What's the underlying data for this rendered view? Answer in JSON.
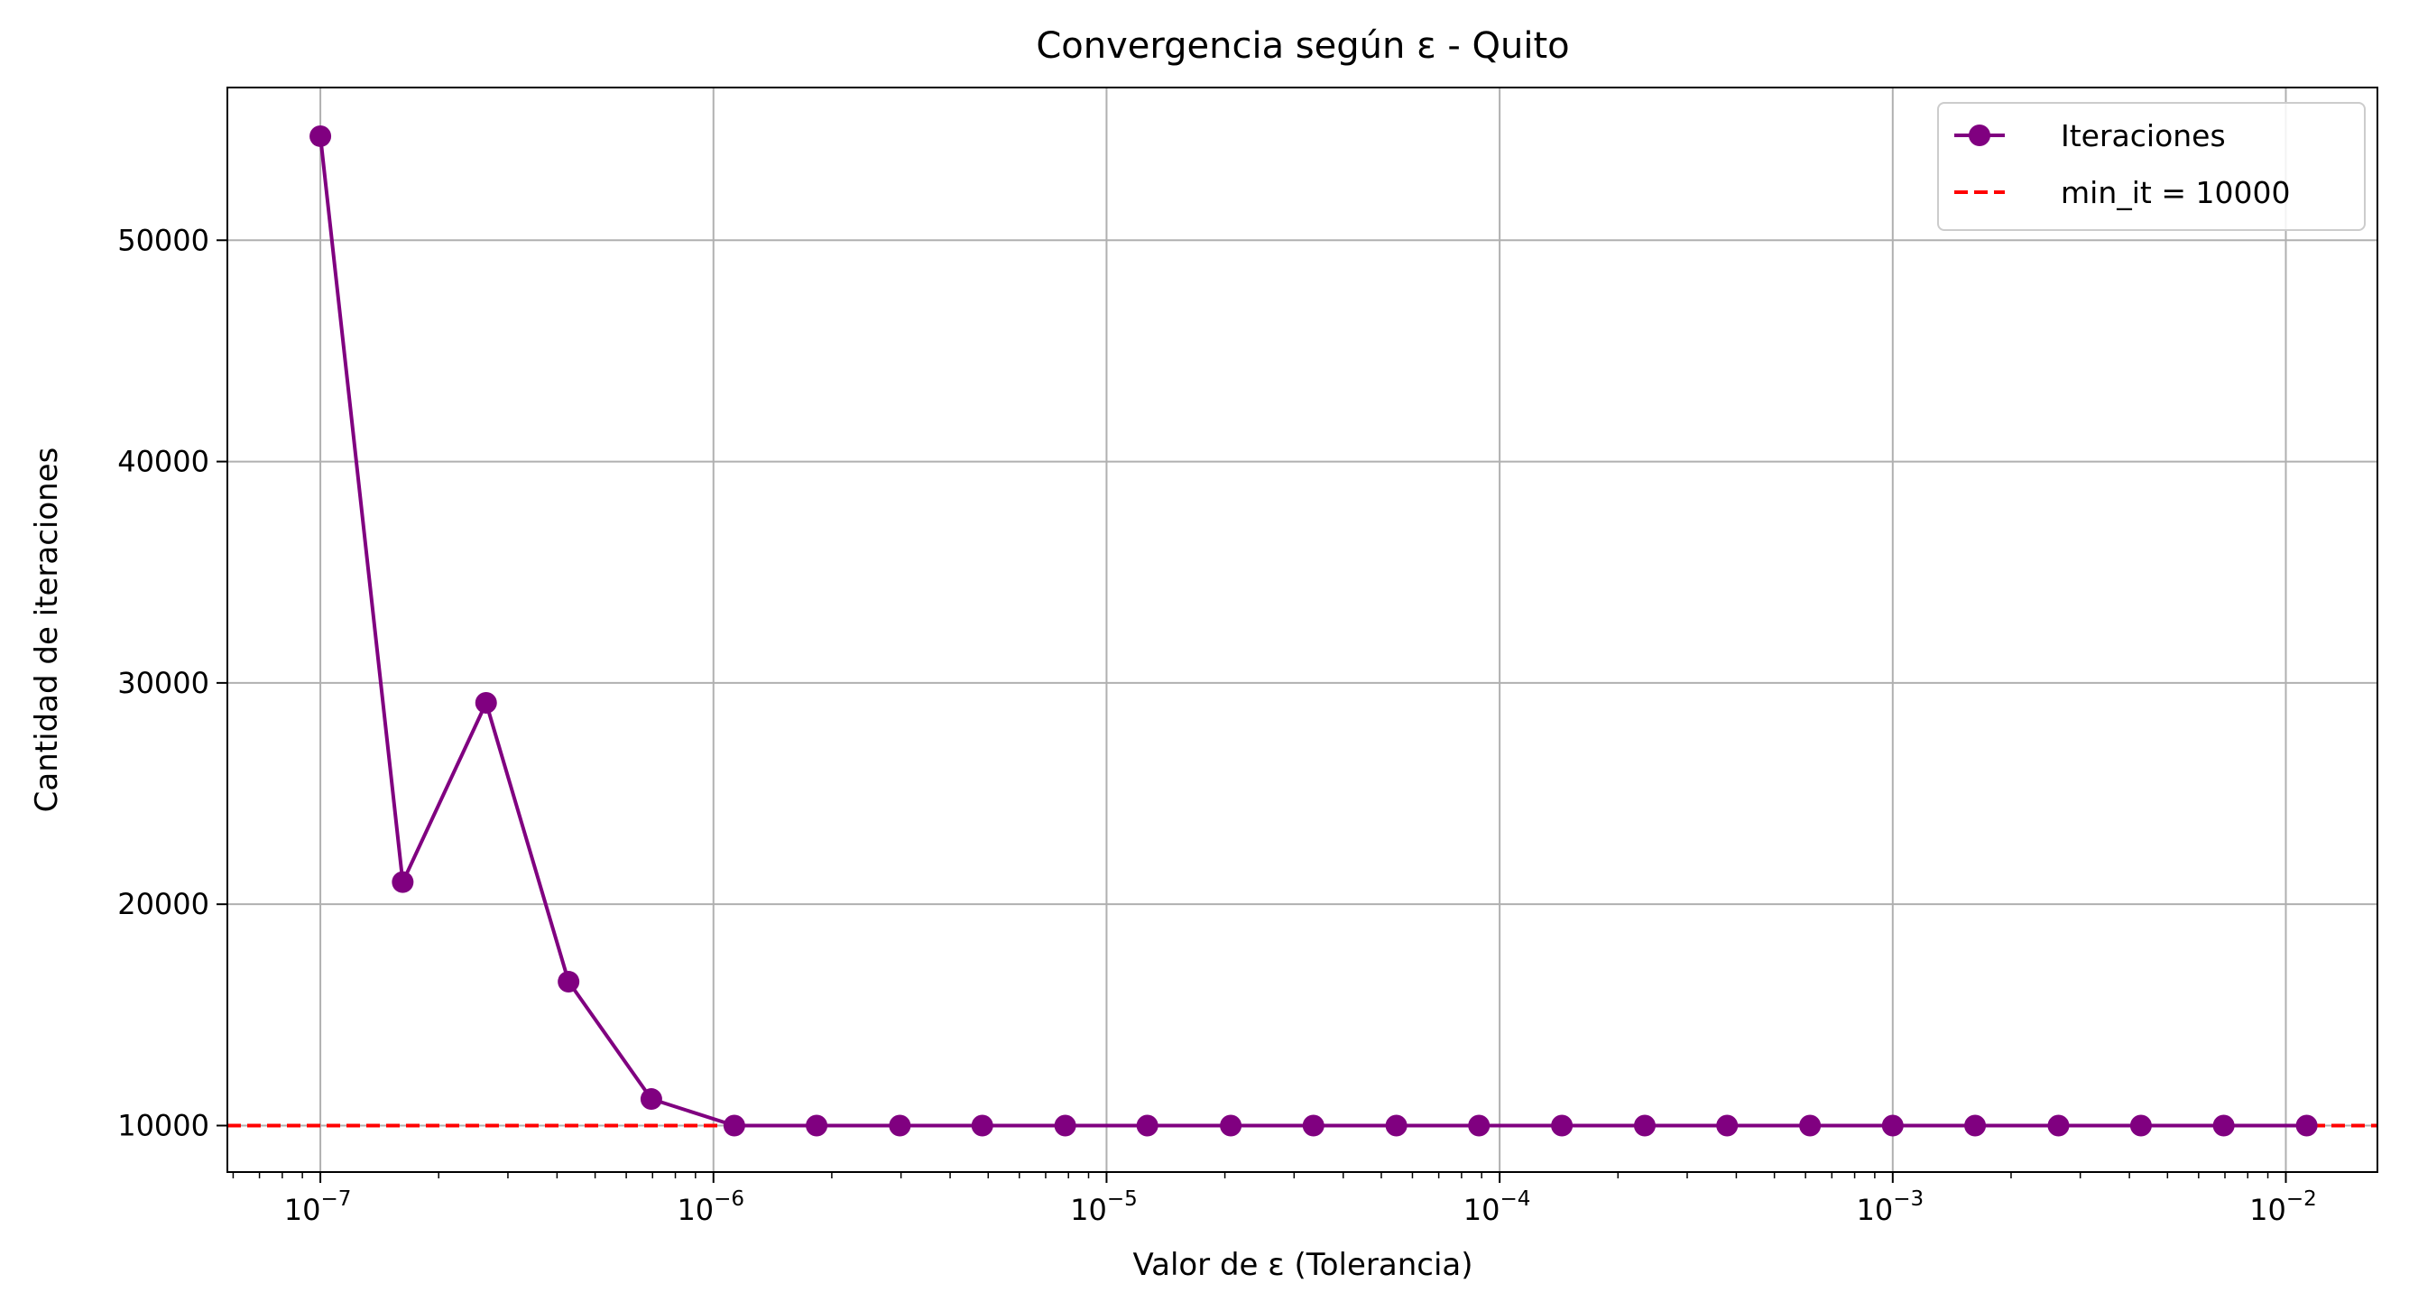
{
  "chart_data": {
    "type": "line",
    "title": "Convergencia según ε - Quito",
    "xlabel": "Valor de ε (Tolerancia)",
    "ylabel": "Cantidad de iteraciones",
    "xscale": "log",
    "xlim": [
      5.8e-08,
      0.0171
    ],
    "ylim": [
      7900,
      56900
    ],
    "grid": true,
    "legend_position": "top-right",
    "x_tick_labels": [
      {
        "base": "10",
        "exp": "−7",
        "value": 1e-07
      },
      {
        "base": "10",
        "exp": "−6",
        "value": 1e-06
      },
      {
        "base": "10",
        "exp": "−5",
        "value": 1e-05
      },
      {
        "base": "10",
        "exp": "−4",
        "value": 0.0001
      },
      {
        "base": "10",
        "exp": "−3",
        "value": 0.001
      },
      {
        "base": "10",
        "exp": "−2",
        "value": 0.01
      }
    ],
    "y_ticks": [
      10000,
      20000,
      30000,
      40000,
      50000
    ],
    "series": [
      {
        "name": "Iteraciones",
        "color": "#800080",
        "marker": "circle",
        "x": [
          1e-07,
          1.62e-07,
          2.64e-07,
          4.28e-07,
          6.95e-07,
          1.13e-06,
          1.83e-06,
          2.98e-06,
          4.83e-06,
          7.85e-06,
          1.27e-05,
          2.07e-05,
          3.36e-05,
          5.46e-05,
          8.86e-05,
          0.000144,
          0.000234,
          0.000379,
          0.000616,
          0.001,
          0.00162,
          0.00264,
          0.00428,
          0.00695,
          0.0113
        ],
        "y": [
          54700,
          21000,
          29100,
          16500,
          11200,
          10000,
          10000,
          10000,
          10000,
          10000,
          10000,
          10000,
          10000,
          10000,
          10000,
          10000,
          10000,
          10000,
          10000,
          10000,
          10000,
          10000,
          10000,
          10000,
          10000
        ]
      }
    ],
    "reference_line": {
      "name": "min_it = 10000",
      "value": 10000,
      "color": "#ff0000",
      "style": "dashed"
    }
  }
}
